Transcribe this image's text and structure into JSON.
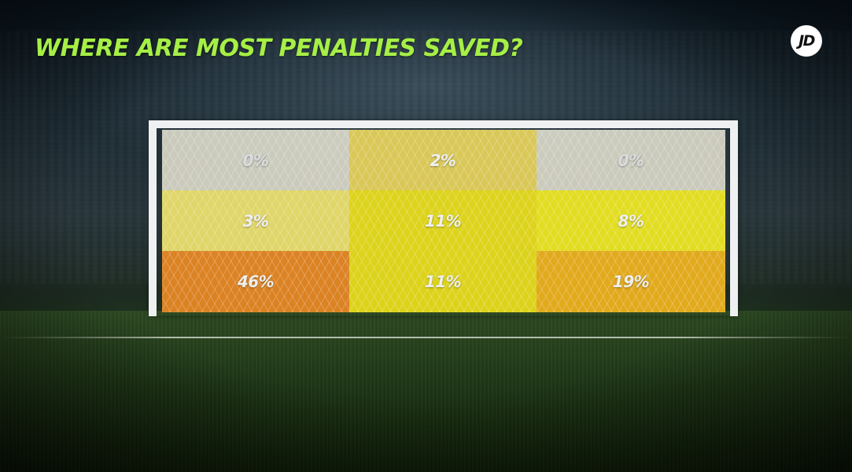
{
  "title": "WHERE ARE MOST PENALTIES SAVED?",
  "logo": {
    "text": "JD"
  },
  "colors": {
    "title": "#a6ef45",
    "label": "#ffffff",
    "low": "#f0ecd9",
    "medium": "#f0e66a",
    "high": "#ede11a",
    "orange_light": "#f2b41c",
    "orange_dark": "#ec8a24"
  },
  "chart_data": {
    "type": "heatmap",
    "title": "WHERE ARE MOST PENALTIES SAVED?",
    "rows": [
      "top",
      "middle",
      "bottom"
    ],
    "columns": [
      "left",
      "centre",
      "right"
    ],
    "values": [
      [
        0,
        2,
        0
      ],
      [
        3,
        11,
        8
      ],
      [
        46,
        11,
        19
      ]
    ],
    "labels": [
      [
        "0%",
        "2%",
        "0%"
      ],
      [
        "3%",
        "11%",
        "8%"
      ],
      [
        "46%",
        "11%",
        "19%"
      ]
    ],
    "unit": "%",
    "cell_colors": [
      [
        "#efecd9",
        "#e8d45a",
        "#efecd9"
      ],
      [
        "#f0e46e",
        "#ede11a",
        "#f2ec20"
      ],
      [
        "#ec8a24",
        "#ede11a",
        "#f2b41c"
      ]
    ]
  }
}
